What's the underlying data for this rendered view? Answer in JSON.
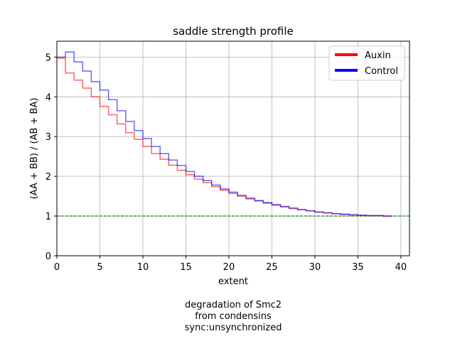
{
  "chart_data": {
    "type": "line",
    "step": true,
    "title": "saddle strength profile",
    "xlabel": "extent",
    "ylabel": "(AA + BB) / (AB + BA)",
    "xlim": [
      0,
      41
    ],
    "ylim": [
      0,
      5.4
    ],
    "xticks": [
      0,
      5,
      10,
      15,
      20,
      25,
      30,
      35,
      40
    ],
    "yticks": [
      0,
      1,
      2,
      3,
      4,
      5
    ],
    "grid": true,
    "legend_position": "top-right",
    "reference_line": {
      "y": 1,
      "color": "#008000",
      "style": "dashed"
    },
    "x": [
      0,
      1,
      2,
      3,
      4,
      5,
      6,
      7,
      8,
      9,
      10,
      11,
      12,
      13,
      14,
      15,
      16,
      17,
      18,
      19,
      20,
      21,
      22,
      23,
      24,
      25,
      26,
      27,
      28,
      29,
      30,
      31,
      32,
      33,
      34,
      35,
      36,
      37,
      38,
      39
    ],
    "series": [
      {
        "name": "Auxin",
        "color": "#ff0000",
        "values": [
          4.97,
          4.6,
          4.42,
          4.22,
          4.0,
          3.76,
          3.55,
          3.32,
          3.1,
          2.93,
          2.75,
          2.57,
          2.43,
          2.28,
          2.15,
          2.04,
          1.93,
          1.84,
          1.74,
          1.65,
          1.57,
          1.5,
          1.43,
          1.38,
          1.32,
          1.27,
          1.23,
          1.19,
          1.16,
          1.13,
          1.1,
          1.08,
          1.06,
          1.05,
          1.03,
          1.02,
          1.01,
          1.01,
          1.0,
          1.0
        ]
      },
      {
        "name": "Control",
        "color": "#0000ff",
        "values": [
          5.0,
          5.13,
          4.88,
          4.65,
          4.38,
          4.17,
          3.93,
          3.65,
          3.38,
          3.15,
          2.95,
          2.75,
          2.57,
          2.41,
          2.27,
          2.12,
          2.0,
          1.89,
          1.78,
          1.68,
          1.6,
          1.52,
          1.45,
          1.39,
          1.34,
          1.29,
          1.24,
          1.2,
          1.16,
          1.13,
          1.1,
          1.08,
          1.06,
          1.04,
          1.03,
          1.02,
          1.01,
          1.01,
          1.0,
          1.0
        ]
      }
    ],
    "caption": [
      "degradation of Smc2",
      "from condensins",
      "sync:unsynchronized"
    ]
  }
}
